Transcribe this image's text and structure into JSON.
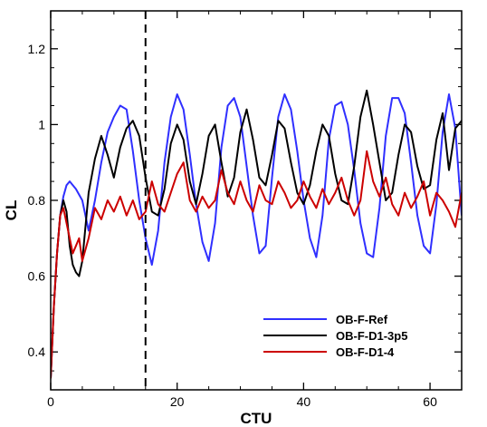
{
  "chart_data": {
    "type": "line",
    "xlabel": "CTU",
    "ylabel": "CL",
    "xlim": [
      0,
      65
    ],
    "ylim": [
      0.3,
      1.3
    ],
    "xticks": [
      0,
      20,
      40,
      60
    ],
    "yticks": [
      0.4,
      0.6,
      0.8,
      1,
      1.2
    ],
    "xtick_labels": [
      "0",
      "20",
      "40",
      "60"
    ],
    "ytick_labels": [
      "0.4",
      "0.6",
      "0.8",
      "1",
      "1.2"
    ],
    "grid": false,
    "legend_position": "bottom-right",
    "annotations": [
      {
        "type": "vertical-dashed-line",
        "x": 15
      }
    ],
    "series": [
      {
        "name": "OB-F-Ref",
        "color": "#2f2fff",
        "x": [
          0,
          0.5,
          1,
          1.5,
          2,
          2.5,
          3,
          4,
          5,
          6,
          7,
          8,
          9,
          10,
          11,
          12,
          13,
          14,
          15,
          16,
          17,
          18,
          19,
          20,
          21,
          22,
          23,
          24,
          25,
          26,
          27,
          28,
          29,
          30,
          31,
          32,
          33,
          34,
          35,
          36,
          37,
          38,
          39,
          40,
          41,
          42,
          43,
          44,
          45,
          46,
          47,
          48,
          49,
          50,
          51,
          52,
          53,
          54,
          55,
          56,
          57,
          58,
          59,
          60,
          61,
          62,
          63,
          64,
          65
        ],
        "y": [
          0.33,
          0.52,
          0.66,
          0.76,
          0.81,
          0.84,
          0.85,
          0.83,
          0.8,
          0.72,
          0.8,
          0.9,
          0.98,
          1.02,
          1.05,
          1.04,
          0.93,
          0.8,
          0.7,
          0.63,
          0.72,
          0.9,
          1.02,
          1.08,
          1.04,
          0.92,
          0.79,
          0.69,
          0.64,
          0.74,
          0.94,
          1.05,
          1.07,
          1.02,
          0.89,
          0.76,
          0.66,
          0.68,
          0.86,
          1.02,
          1.08,
          1.04,
          0.93,
          0.8,
          0.7,
          0.65,
          0.76,
          0.96,
          1.05,
          1.06,
          1.0,
          0.88,
          0.74,
          0.66,
          0.65,
          0.78,
          0.97,
          1.07,
          1.07,
          1.03,
          0.9,
          0.76,
          0.68,
          0.66,
          0.79,
          0.98,
          1.08,
          0.99,
          0.76
        ]
      },
      {
        "name": "OB-F-D1-3p5",
        "color": "#000000",
        "x": [
          0,
          0.5,
          1,
          1.5,
          2,
          2.5,
          3,
          3.5,
          4,
          4.5,
          5,
          6,
          7,
          8,
          9,
          10,
          11,
          12,
          13,
          14,
          15,
          16,
          17,
          18,
          19,
          20,
          21,
          22,
          23,
          24,
          25,
          26,
          27,
          28,
          29,
          30,
          31,
          32,
          33,
          34,
          35,
          36,
          37,
          38,
          39,
          40,
          41,
          42,
          43,
          44,
          45,
          46,
          47,
          48,
          49,
          50,
          51,
          52,
          53,
          54,
          55,
          56,
          57,
          58,
          59,
          60,
          61,
          62,
          63,
          64,
          65
        ],
        "y": [
          0.33,
          0.52,
          0.66,
          0.76,
          0.8,
          0.77,
          0.68,
          0.63,
          0.61,
          0.6,
          0.64,
          0.82,
          0.91,
          0.97,
          0.92,
          0.86,
          0.94,
          0.99,
          1.01,
          0.97,
          0.86,
          0.77,
          0.76,
          0.83,
          0.95,
          1.0,
          0.96,
          0.85,
          0.79,
          0.87,
          0.97,
          1.0,
          0.9,
          0.81,
          0.86,
          0.98,
          1.04,
          0.96,
          0.86,
          0.84,
          0.92,
          1.01,
          0.99,
          0.9,
          0.82,
          0.79,
          0.84,
          0.93,
          1.0,
          0.97,
          0.87,
          0.8,
          0.79,
          0.89,
          1.02,
          1.09,
          1.0,
          0.9,
          0.8,
          0.82,
          0.92,
          1.0,
          0.98,
          0.89,
          0.83,
          0.84,
          0.96,
          1.03,
          0.88,
          0.99,
          1.01
        ]
      },
      {
        "name": "OB-F-D1-4",
        "color": "#cc0000",
        "x": [
          0,
          0.5,
          1,
          1.5,
          2,
          2.5,
          3,
          3.5,
          4,
          4.5,
          5,
          6,
          7,
          8,
          9,
          10,
          11,
          12,
          13,
          14,
          15,
          16,
          17,
          18,
          19,
          20,
          21,
          22,
          23,
          24,
          25,
          26,
          27,
          28,
          29,
          30,
          31,
          32,
          33,
          34,
          35,
          36,
          37,
          38,
          39,
          40,
          41,
          42,
          43,
          44,
          45,
          46,
          47,
          48,
          49,
          50,
          51,
          52,
          53,
          54,
          55,
          56,
          57,
          58,
          59,
          60,
          61,
          62,
          63,
          64,
          65
        ],
        "y": [
          0.33,
          0.52,
          0.66,
          0.76,
          0.78,
          0.74,
          0.7,
          0.66,
          0.68,
          0.7,
          0.64,
          0.7,
          0.78,
          0.75,
          0.8,
          0.77,
          0.81,
          0.76,
          0.8,
          0.75,
          0.77,
          0.85,
          0.79,
          0.77,
          0.82,
          0.87,
          0.9,
          0.8,
          0.77,
          0.81,
          0.78,
          0.8,
          0.88,
          0.82,
          0.79,
          0.85,
          0.8,
          0.77,
          0.84,
          0.8,
          0.79,
          0.85,
          0.82,
          0.78,
          0.8,
          0.85,
          0.81,
          0.78,
          0.83,
          0.79,
          0.82,
          0.86,
          0.8,
          0.76,
          0.8,
          0.93,
          0.85,
          0.81,
          0.86,
          0.79,
          0.76,
          0.82,
          0.78,
          0.81,
          0.85,
          0.76,
          0.82,
          0.8,
          0.77,
          0.73,
          0.82
        ]
      }
    ]
  }
}
